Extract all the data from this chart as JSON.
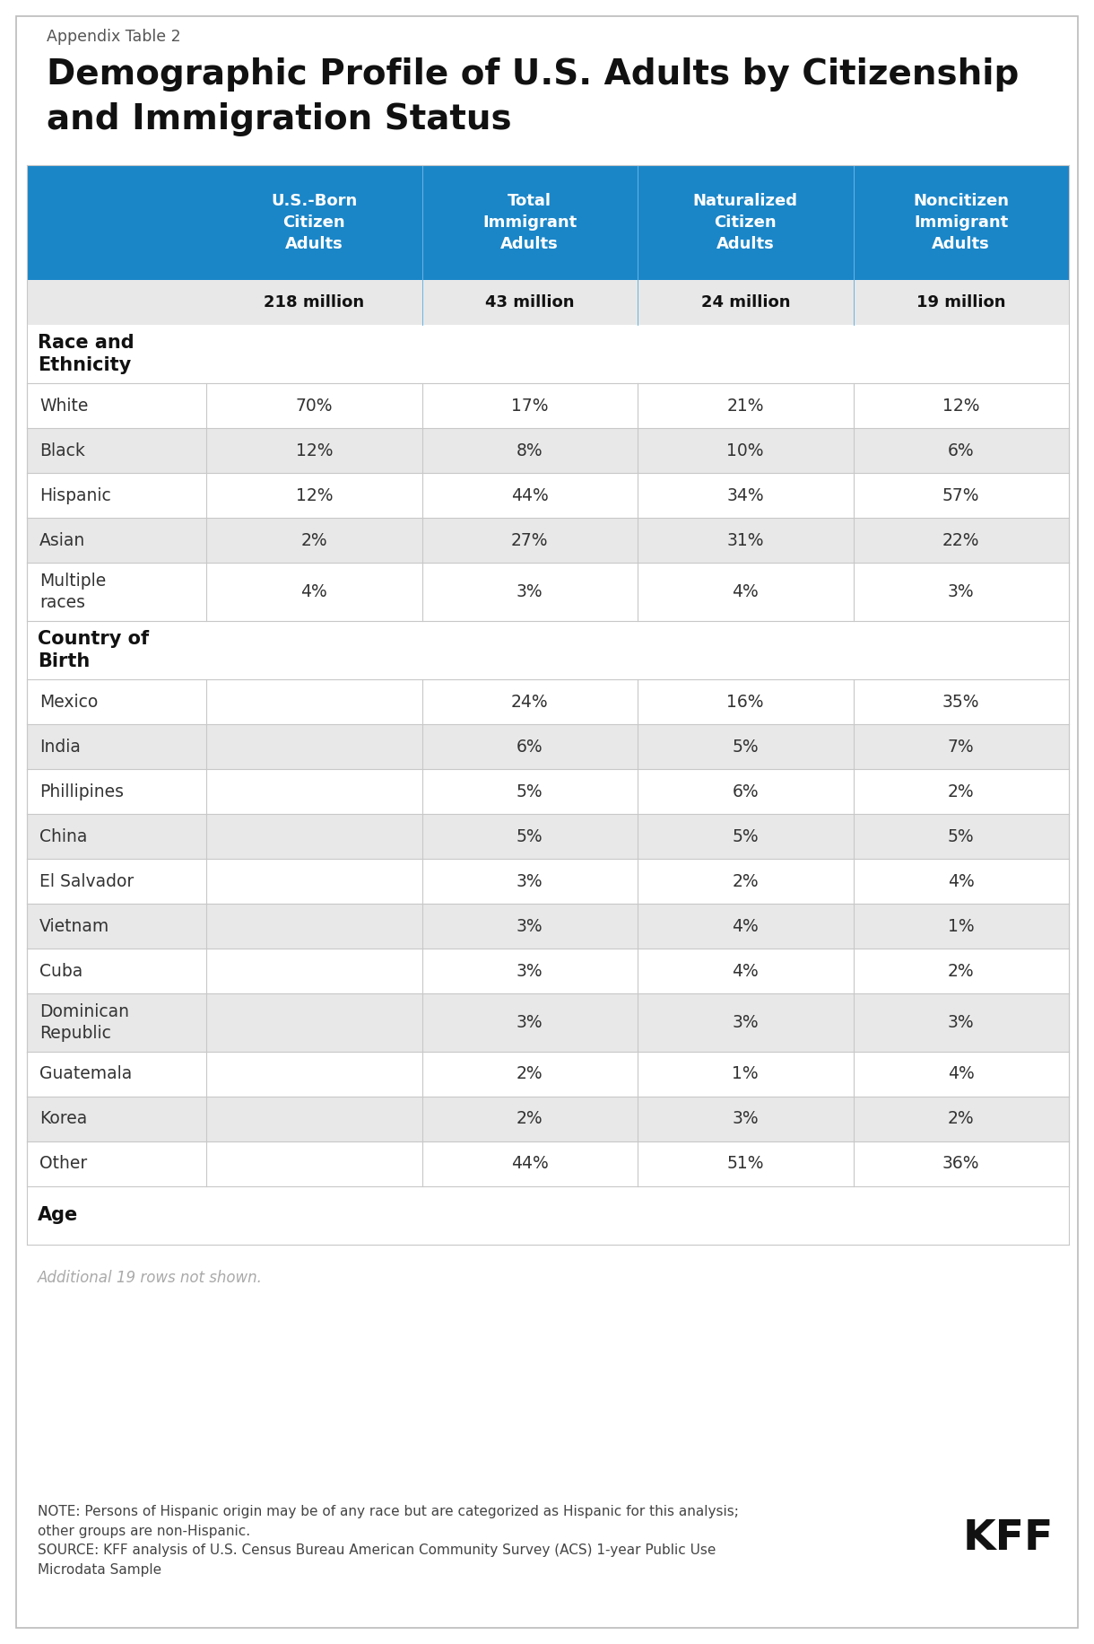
{
  "appendix_label": "Appendix Table 2",
  "title_line1": "Demographic Profile of U.S. Adults by Citizenship",
  "title_line2": "and Immigration Status",
  "header_bg_color": "#1a86c8",
  "header_text_color": "#ffffff",
  "col_headers": [
    "U.S.-Born\nCitizen\nAdults",
    "Total\nImmigrant\nAdults",
    "Naturalized\nCitizen\nAdults",
    "Noncitizen\nImmigrant\nAdults"
  ],
  "sub_headers": [
    "218 million",
    "43 million",
    "24 million",
    "19 million"
  ],
  "rows": [
    {
      "label": "Race and\nEthnicity",
      "type": "section",
      "shade": false,
      "values": [
        "",
        "",
        "",
        ""
      ]
    },
    {
      "label": "White",
      "type": "data",
      "shade": false,
      "values": [
        "70%",
        "17%",
        "21%",
        "12%"
      ]
    },
    {
      "label": "Black",
      "type": "data",
      "shade": true,
      "values": [
        "12%",
        "8%",
        "10%",
        "6%"
      ]
    },
    {
      "label": "Hispanic",
      "type": "data",
      "shade": false,
      "values": [
        "12%",
        "44%",
        "34%",
        "57%"
      ]
    },
    {
      "label": "Asian",
      "type": "data",
      "shade": true,
      "values": [
        "2%",
        "27%",
        "31%",
        "22%"
      ]
    },
    {
      "label": "Multiple\nraces",
      "type": "data",
      "shade": false,
      "values": [
        "4%",
        "3%",
        "4%",
        "3%"
      ]
    },
    {
      "label": "Country of\nBirth",
      "type": "section",
      "shade": false,
      "values": [
        "",
        "",
        "",
        ""
      ]
    },
    {
      "label": "Mexico",
      "type": "data",
      "shade": false,
      "values": [
        "",
        "24%",
        "16%",
        "35%"
      ]
    },
    {
      "label": "India",
      "type": "data",
      "shade": true,
      "values": [
        "",
        "6%",
        "5%",
        "7%"
      ]
    },
    {
      "label": "Phillipines",
      "type": "data",
      "shade": false,
      "values": [
        "",
        "5%",
        "6%",
        "2%"
      ]
    },
    {
      "label": "China",
      "type": "data",
      "shade": true,
      "values": [
        "",
        "5%",
        "5%",
        "5%"
      ]
    },
    {
      "label": "El Salvador",
      "type": "data",
      "shade": false,
      "values": [
        "",
        "3%",
        "2%",
        "4%"
      ]
    },
    {
      "label": "Vietnam",
      "type": "data",
      "shade": true,
      "values": [
        "",
        "3%",
        "4%",
        "1%"
      ]
    },
    {
      "label": "Cuba",
      "type": "data",
      "shade": false,
      "values": [
        "",
        "3%",
        "4%",
        "2%"
      ]
    },
    {
      "label": "Dominican\nRepublic",
      "type": "data",
      "shade": true,
      "values": [
        "",
        "3%",
        "3%",
        "3%"
      ]
    },
    {
      "label": "Guatemala",
      "type": "data",
      "shade": false,
      "values": [
        "",
        "2%",
        "1%",
        "4%"
      ]
    },
    {
      "label": "Korea",
      "type": "data",
      "shade": true,
      "values": [
        "",
        "2%",
        "3%",
        "2%"
      ]
    },
    {
      "label": "Other",
      "type": "data",
      "shade": false,
      "values": [
        "",
        "44%",
        "51%",
        "36%"
      ]
    },
    {
      "label": "Age",
      "type": "section",
      "shade": false,
      "values": [
        "",
        "",
        "",
        ""
      ]
    }
  ],
  "additional_note": "Additional 19 rows not shown.",
  "note_text": "NOTE: Persons of Hispanic origin may be of any race but are categorized as Hispanic for this analysis;\nother groups are non-Hispanic.\nSOURCE: KFF analysis of U.S. Census Bureau American Community Survey (ACS) 1-year Public Use\nMicrodata Sample",
  "bg_color": "#ffffff",
  "shade_color": "#e8e8e8",
  "white_color": "#ffffff",
  "border_color": "#c8c8c8",
  "section_label_color": "#111111",
  "data_label_color": "#333333",
  "sub_header_bg": "#e8e8e8",
  "kff_logo_text": "KFF"
}
